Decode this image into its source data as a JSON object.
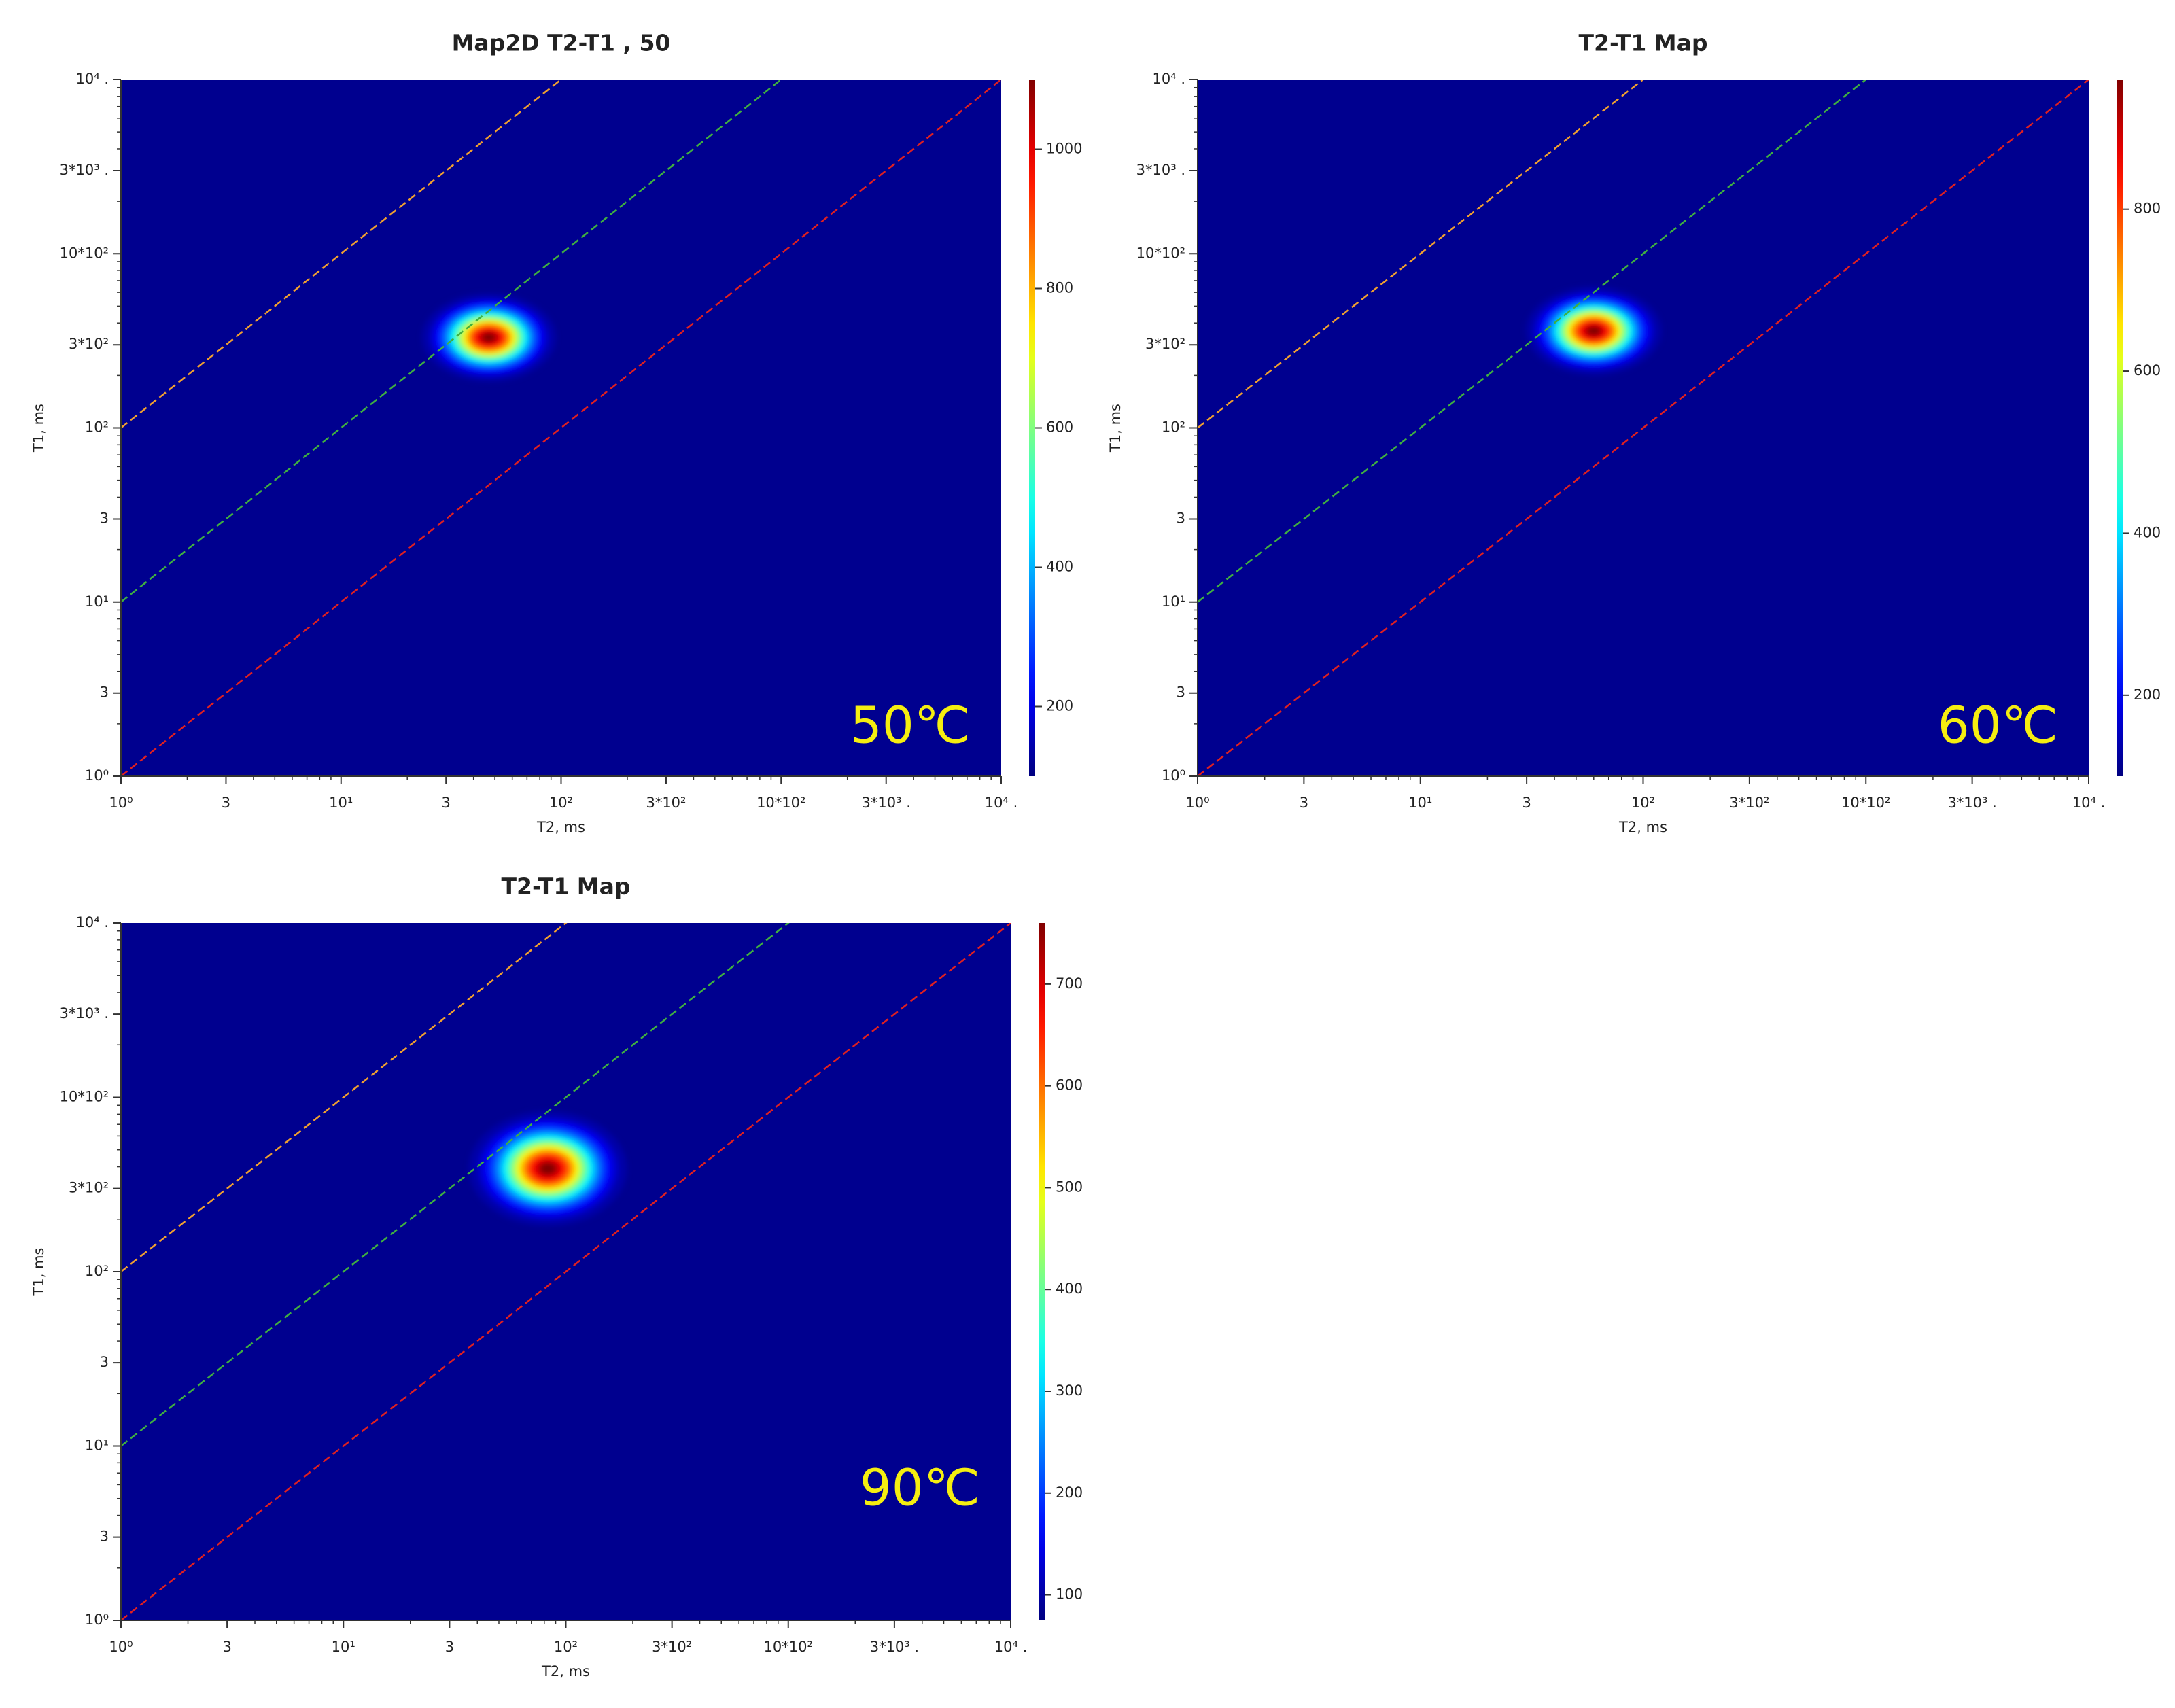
{
  "chart_data": [
    {
      "type": "heatmap",
      "title": "Map2D T2-T1 , 50",
      "xlabel": "T2, ms",
      "ylabel": "T1, ms",
      "annotation": "50℃",
      "log_x": true,
      "log_y": true,
      "background": "#00008f",
      "colormap": "jet",
      "xlim": [
        1,
        10000
      ],
      "ylim": [
        1,
        10000
      ],
      "xticks": [
        {
          "value": 1,
          "label": "10⁰"
        },
        3,
        {
          "value": 10,
          "label": "10¹"
        },
        {
          "value": 30,
          "label": "3"
        },
        {
          "value": 100,
          "label": "10²"
        },
        {
          "value": 300,
          "label": "3*10²"
        },
        {
          "value": 1000,
          "label": "10*10²"
        },
        {
          "value": 3000,
          "label": "3*10³ ."
        },
        {
          "value": 10000,
          "label": "10⁴ ."
        }
      ],
      "yticks": [
        {
          "value": 1,
          "label": "10⁰"
        },
        3,
        {
          "value": 10,
          "label": "10¹"
        },
        {
          "value": 30,
          "label": "3"
        },
        {
          "value": 100,
          "label": "10²"
        },
        {
          "value": 300,
          "label": "3*10²"
        },
        {
          "value": 1000,
          "label": "10*10²"
        },
        {
          "value": 3000,
          "label": "3*10³ ."
        },
        {
          "value": 10000,
          "label": "10⁴ ."
        }
      ],
      "clim": [
        100,
        1100
      ],
      "cticks": [
        200,
        400,
        600,
        800,
        1000
      ],
      "peak": {
        "t2": 47,
        "t1": 330,
        "value": 1100
      },
      "lines": [
        {
          "ratio": 100,
          "color": "#f0a030"
        },
        {
          "ratio": 10,
          "color": "#40b040"
        },
        {
          "ratio": 1,
          "color": "#e02020"
        }
      ]
    },
    {
      "type": "heatmap",
      "title": "T2-T1 Map",
      "xlabel": "T2, ms",
      "ylabel": "T1, ms",
      "annotation": "60℃",
      "log_x": true,
      "log_y": true,
      "background": "#00008f",
      "colormap": "jet",
      "xlim": [
        1,
        10000
      ],
      "ylim": [
        1,
        10000
      ],
      "xticks": [
        {
          "value": 1,
          "label": "10⁰"
        },
        3,
        {
          "value": 10,
          "label": "10¹"
        },
        {
          "value": 30,
          "label": "3"
        },
        {
          "value": 100,
          "label": "10²"
        },
        {
          "value": 300,
          "label": "3*10²"
        },
        {
          "value": 1000,
          "label": "10*10²"
        },
        {
          "value": 3000,
          "label": "3*10³ ."
        },
        {
          "value": 10000,
          "label": "10⁴ ."
        }
      ],
      "yticks": [
        {
          "value": 1,
          "label": "10⁰"
        },
        3,
        {
          "value": 10,
          "label": "10¹"
        },
        {
          "value": 30,
          "label": "3"
        },
        {
          "value": 100,
          "label": "10²"
        },
        {
          "value": 300,
          "label": "3*10²"
        },
        {
          "value": 1000,
          "label": "10*10²"
        },
        {
          "value": 3000,
          "label": "3*10³ ."
        },
        {
          "value": 10000,
          "label": "10⁴ ."
        }
      ],
      "clim": [
        100,
        960
      ],
      "cticks": [
        200,
        400,
        600,
        800
      ],
      "peak": {
        "t2": 60,
        "t1": 360,
        "value": 960
      },
      "lines": [
        {
          "ratio": 100,
          "color": "#f0a030"
        },
        {
          "ratio": 10,
          "color": "#40b040"
        },
        {
          "ratio": 1,
          "color": "#e02020"
        }
      ]
    },
    {
      "type": "heatmap",
      "title": "T2-T1 Map",
      "xlabel": "T2, ms",
      "ylabel": "T1, ms",
      "annotation": "90℃",
      "log_x": true,
      "log_y": true,
      "background": "#00008f",
      "colormap": "jet",
      "xlim": [
        1,
        10000
      ],
      "ylim": [
        1,
        10000
      ],
      "xticks": [
        {
          "value": 1,
          "label": "10⁰"
        },
        3,
        {
          "value": 10,
          "label": "10¹"
        },
        {
          "value": 30,
          "label": "3"
        },
        {
          "value": 100,
          "label": "10²"
        },
        {
          "value": 300,
          "label": "3*10²"
        },
        {
          "value": 1000,
          "label": "10*10²"
        },
        {
          "value": 3000,
          "label": "3*10³ ."
        },
        {
          "value": 10000,
          "label": "10⁴ ."
        }
      ],
      "yticks": [
        {
          "value": 1,
          "label": "10⁰"
        },
        3,
        {
          "value": 10,
          "label": "10¹"
        },
        {
          "value": 30,
          "label": "3"
        },
        {
          "value": 100,
          "label": "10²"
        },
        {
          "value": 300,
          "label": "3*10²"
        },
        {
          "value": 1000,
          "label": "10*10²"
        },
        {
          "value": 3000,
          "label": "3*10³ ."
        },
        {
          "value": 10000,
          "label": "10⁴ ."
        }
      ],
      "clim": [
        75,
        760
      ],
      "cticks": [
        100,
        200,
        300,
        400,
        500,
        600,
        700
      ],
      "peak": {
        "t2": 83,
        "t1": 390,
        "value": 760
      },
      "lines": [
        {
          "ratio": 100,
          "color": "#f0a030"
        },
        {
          "ratio": 10,
          "color": "#40b040"
        },
        {
          "ratio": 1,
          "color": "#e02020"
        }
      ]
    }
  ]
}
